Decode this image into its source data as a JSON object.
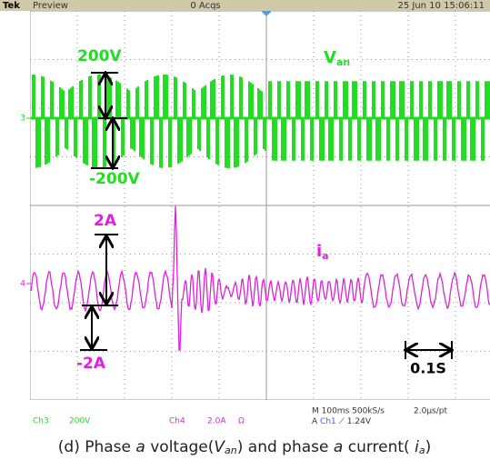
{
  "header": {
    "brand": "Tek",
    "mode": "Preview",
    "acquisitions": "0 Acqs",
    "timestamp": "25 Jun 10 15:06:11"
  },
  "annotations": {
    "voltage_top": "200V",
    "voltage_bottom": "-200V",
    "voltage_symbol": "V",
    "voltage_subscript": "an",
    "current_top": "2A",
    "current_bottom": "-2A",
    "current_symbol": "i",
    "current_subscript": "a",
    "time_scale": "0.1S"
  },
  "markers": {
    "ch3": "3",
    "ch4": "4"
  },
  "status": {
    "ch3_label": "Ch3",
    "ch3_scale": "200V",
    "ch4_label": "Ch4",
    "ch4_scale": "2.0A",
    "ch4_coupling": "Ω",
    "timebase": "M 100ms 500kS/s",
    "resolution": "2.0µs/pt",
    "trigger_prefix": "A",
    "trigger_channel": "Ch1",
    "trigger_level": "⟋ 1.24V"
  },
  "caption": [
    "(d) Phase ",
    "a",
    " voltage(",
    "V",
    "an",
    ") and phase ",
    "a",
    " current( ",
    "i",
    "a",
    ")"
  ]
}
